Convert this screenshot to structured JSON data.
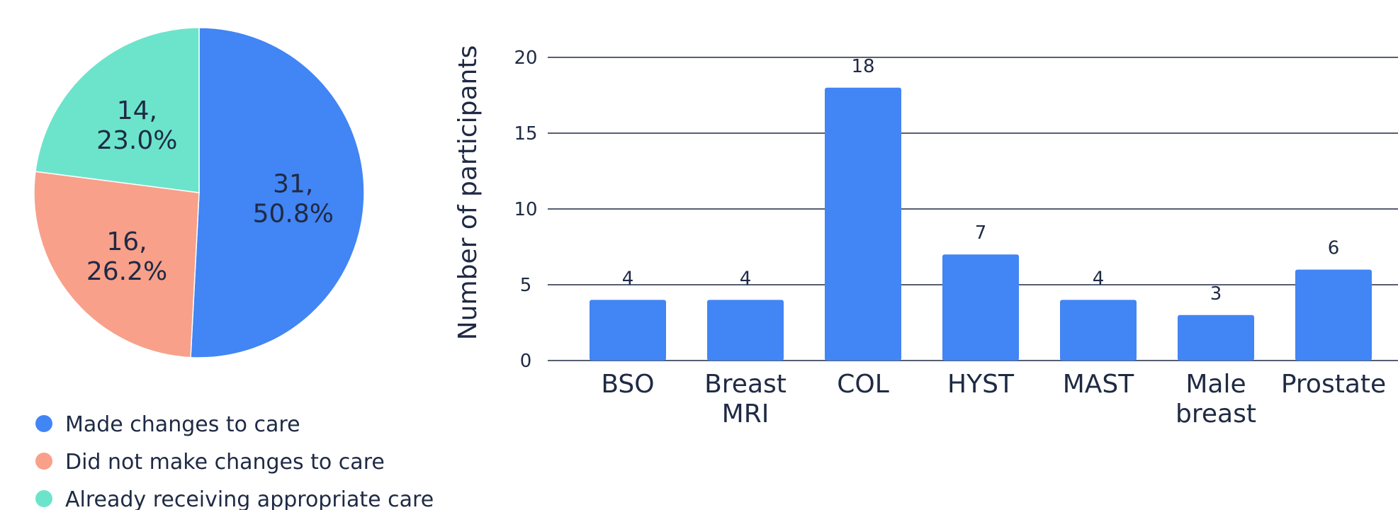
{
  "chart_data": [
    {
      "type": "pie",
      "slices": [
        {
          "name": "Made changes to care",
          "value": 31,
          "percent": "50.8%",
          "color": "#4285f4"
        },
        {
          "name": "Did not make changes to care",
          "value": 16,
          "percent": "26.2%",
          "color": "#f8a08a"
        },
        {
          "name": "Already receiving appropriate care",
          "value": 14,
          "percent": "23.0%",
          "color": "#6ce4cb"
        }
      ],
      "legend": "bottom-left"
    },
    {
      "type": "bar",
      "categories": [
        [
          "BSO"
        ],
        [
          "Breast",
          "MRI"
        ],
        [
          "COL"
        ],
        [
          "HYST"
        ],
        [
          "MAST"
        ],
        [
          "Male",
          "breast"
        ],
        [
          "Prostate"
        ]
      ],
      "values": [
        4,
        4,
        18,
        7,
        4,
        3,
        6
      ],
      "color": "#4285f4",
      "ylabel": "Number of participants",
      "ylim": [
        0,
        20
      ],
      "yticks": [
        0,
        5,
        10,
        15,
        20
      ],
      "grid": true
    }
  ]
}
